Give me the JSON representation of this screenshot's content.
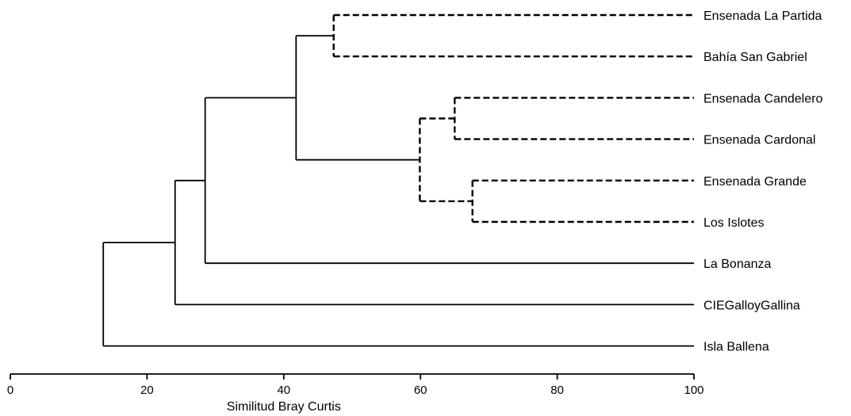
{
  "chart_data": {
    "type": "dendrogram",
    "xlabel": "Similitud Bray Curtis",
    "xlim": [
      0,
      100
    ],
    "ticks": [
      0,
      20,
      40,
      60,
      80,
      100
    ],
    "tick_labels": [
      "0",
      "20",
      "40",
      "60",
      "80",
      "100"
    ],
    "line_color": "#000000",
    "leaves": [
      "Ensenada La Partida",
      "Bahía San Gabriel",
      "Ensenada Candelero",
      "Ensenada Cardonal",
      "Ensenada Grande",
      "Los Islotes",
      "La Bonanza",
      "CIEGalloyGallina",
      "Isla Ballena"
    ],
    "merges": [
      {
        "id": "A",
        "left": "Ensenada La Partida",
        "right": "Bahía San Gabriel",
        "similarity": 47.3,
        "style": "dashed"
      },
      {
        "id": "B",
        "left": "Ensenada Candelero",
        "right": "Ensenada Cardonal",
        "similarity": 65.0,
        "style": "dashed"
      },
      {
        "id": "C",
        "left": "Ensenada Grande",
        "right": "Los Islotes",
        "similarity": 67.6,
        "style": "dashed"
      },
      {
        "id": "D",
        "left": "B",
        "right": "C",
        "similarity": 59.9,
        "style": "dashed"
      },
      {
        "id": "E",
        "left": "A",
        "right": "D",
        "similarity": 41.8,
        "style": "solid"
      },
      {
        "id": "F",
        "left": "E",
        "right": "La Bonanza",
        "similarity": 28.5,
        "style": "solid"
      },
      {
        "id": "G",
        "left": "F",
        "right": "CIEGalloyGallina",
        "similarity": 24.1,
        "style": "solid"
      },
      {
        "id": "H",
        "left": "G",
        "right": "Isla Ballena",
        "similarity": 13.6,
        "style": "solid"
      }
    ]
  }
}
